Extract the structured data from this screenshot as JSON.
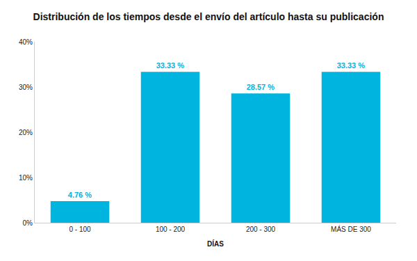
{
  "chart_data": {
    "type": "bar",
    "title": "Distribución de los tiempos desde el envío del artículo hasta su publicación",
    "x_label": "DÍAS",
    "categories": [
      "0 - 100",
      "100 - 200",
      "200 - 300",
      "MÁS DE 300"
    ],
    "values": [
      4.76,
      33.33,
      28.57,
      33.33
    ],
    "value_labels": [
      "4.76 %",
      "33.33 %",
      "28.57 %",
      "33.33 %"
    ],
    "color": "#00b4e0",
    "data_labels": true,
    "grid": false,
    "ylim": [
      0,
      40
    ],
    "yticks": [
      {
        "value": 0,
        "label": "0%"
      },
      {
        "value": 10,
        "label": "10%"
      },
      {
        "value": 20,
        "label": "20%"
      },
      {
        "value": 30,
        "label": "30%"
      },
      {
        "value": 40,
        "label": "40%"
      }
    ]
  }
}
